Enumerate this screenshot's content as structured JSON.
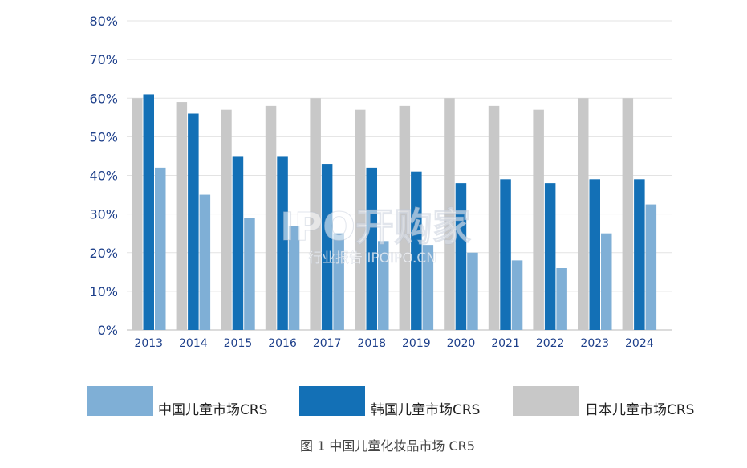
{
  "chart_data": {
    "type": "bar",
    "title": "",
    "caption": "图 1 中国儿童化妆品市场 CR5",
    "xlabel": "",
    "ylabel": "",
    "ylim": [
      0,
      80
    ],
    "yticks": [
      "0%",
      "10%",
      "20%",
      "30%",
      "40%",
      "50%",
      "60%",
      "70%",
      "80%"
    ],
    "y_tick_values": [
      0,
      10,
      20,
      30,
      40,
      50,
      60,
      70,
      80
    ],
    "grid": "horizontal",
    "legend_position": "bottom",
    "categories": [
      "2013",
      "2014",
      "2015",
      "2016",
      "2017",
      "2018",
      "2019",
      "2020",
      "2021",
      "2022",
      "2023",
      "2024"
    ],
    "series": [
      {
        "name": "日本儿童市场CRS",
        "color": "#c8c8c8",
        "values": [
          60,
          59,
          57,
          58,
          60,
          57,
          58,
          60,
          58,
          57,
          60,
          60
        ]
      },
      {
        "name": "韩国儿童市场CRS",
        "color": "#1370b6",
        "values": [
          61,
          56,
          45,
          45,
          43,
          42,
          41,
          38,
          39,
          38,
          39,
          39
        ]
      },
      {
        "name": "中国儿童市场CRS",
        "color": "#7fafd6",
        "values": [
          42,
          35,
          29,
          27,
          25,
          23,
          22,
          20,
          18,
          16,
          25,
          32.5
        ]
      }
    ],
    "legend_order": [
      "中国儿童市场CRS",
      "韩国儿童市场CRS",
      "日本儿童市场CRS"
    ]
  },
  "watermark": {
    "main": "IPO开购家",
    "sub": "行业报告 IPOIPO.CN"
  }
}
